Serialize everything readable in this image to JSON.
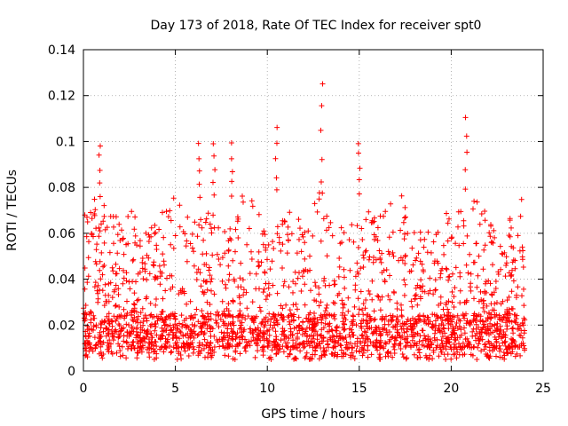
{
  "chart_data": {
    "type": "scatter",
    "title": "Day 173 of 2018, Rate Of TEC Index for receiver spt0",
    "xlabel": "GPS time / hours",
    "ylabel": "ROTI / TECUs",
    "xlim": [
      0,
      25
    ],
    "ylim": [
      0,
      0.14
    ],
    "xticks": [
      0,
      5,
      10,
      15,
      20,
      25
    ],
    "yticks": [
      0,
      0.02,
      0.04,
      0.06,
      0.08,
      0.1,
      0.12,
      0.14
    ],
    "xtick_labels": [
      "0",
      "5",
      "10",
      "15",
      "20",
      "25"
    ],
    "ytick_labels": [
      "0",
      "0.02",
      "0.04",
      "0.06",
      "0.08",
      "0.1",
      "0.12",
      "0.14"
    ],
    "grid": true,
    "marker": "+",
    "marker_color": "#ff0000",
    "data_x_range": [
      0,
      24
    ],
    "baseline_band": [
      0.01,
      0.025
    ],
    "typical_upper_envelope": [
      0.06,
      0.08
    ],
    "series": [
      {
        "name": "ROTI",
        "note": "dense per-epoch samples 0-24 h; values mostly 0.005-0.08 with peaks listed",
        "peaks": [
          {
            "x": 0.9,
            "y": 0.1
          },
          {
            "x": 6.3,
            "y": 0.1
          },
          {
            "x": 7.1,
            "y": 0.1
          },
          {
            "x": 8.1,
            "y": 0.1
          },
          {
            "x": 10.5,
            "y": 0.107
          },
          {
            "x": 12.95,
            "y": 0.127
          },
          {
            "x": 15.0,
            "y": 0.101
          },
          {
            "x": 20.8,
            "y": 0.112
          }
        ]
      }
    ]
  }
}
